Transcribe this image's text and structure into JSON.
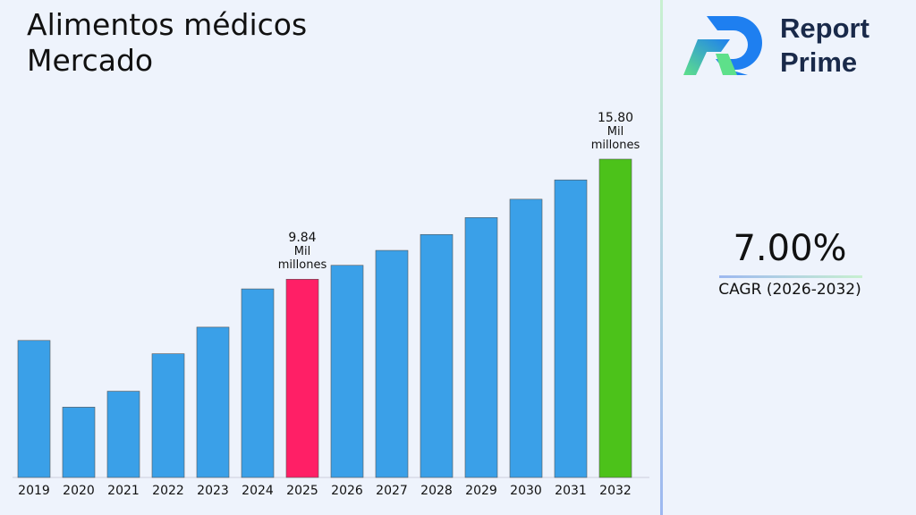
{
  "chart_data": {
    "type": "bar",
    "title": "Alimentos médicos Mercado",
    "categories": [
      "2019",
      "2020",
      "2021",
      "2022",
      "2023",
      "2024",
      "2025",
      "2026",
      "2027",
      "2028",
      "2029",
      "2030",
      "2031",
      "2032"
    ],
    "values": [
      6.8,
      3.49,
      4.28,
      6.14,
      7.46,
      9.36,
      9.84,
      10.53,
      11.27,
      12.06,
      12.9,
      13.81,
      14.77,
      15.8
    ],
    "value_labels": [
      null,
      null,
      null,
      null,
      null,
      null,
      "9.84",
      null,
      null,
      null,
      null,
      null,
      null,
      "15.80"
    ],
    "unit": "Mil millones",
    "colors": [
      "#3aa0e8",
      "#3aa0e8",
      "#3aa0e8",
      "#3aa0e8",
      "#3aa0e8",
      "#3aa0e8",
      "#ff1f66",
      "#3aa0e8",
      "#3aa0e8",
      "#3aa0e8",
      "#3aa0e8",
      "#3aa0e8",
      "#3aa0e8",
      "#4cc21a"
    ]
  },
  "side_panel": {
    "brand": [
      "Report",
      "Prime"
    ],
    "cagr_value": "7.00%",
    "cagr_label": "CAGR (2026-2032)"
  }
}
